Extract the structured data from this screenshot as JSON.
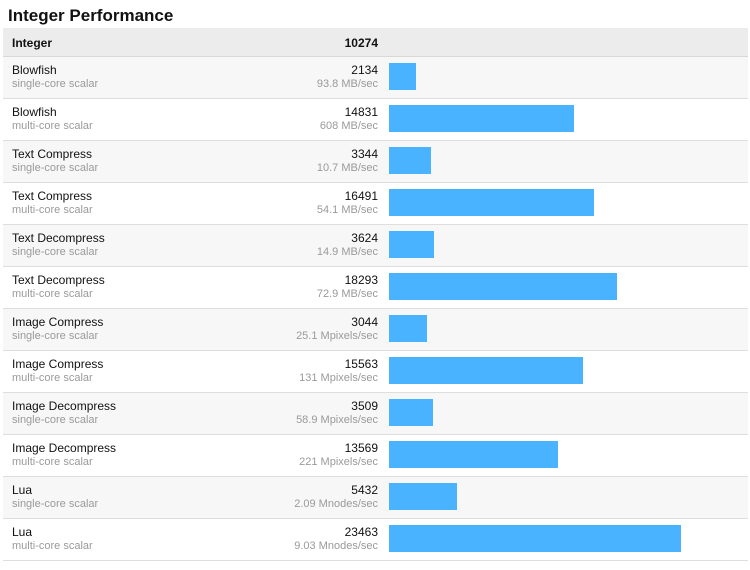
{
  "title": "Integer Performance",
  "header": {
    "name": "Integer",
    "score": "10274"
  },
  "colors": {
    "bar": "#4ab3ff",
    "header_bg": "#ececec",
    "row_alt_bg": "#f7f7f7"
  },
  "chart_data": {
    "type": "bar",
    "orientation": "horizontal",
    "title": "Integer Performance",
    "categories": [
      "Blowfish single-core scalar",
      "Blowfish multi-core scalar",
      "Text Compress single-core scalar",
      "Text Compress multi-core scalar",
      "Text Decompress single-core scalar",
      "Text Decompress multi-core scalar",
      "Image Compress single-core scalar",
      "Image Compress multi-core scalar",
      "Image Decompress single-core scalar",
      "Image Decompress multi-core scalar",
      "Lua single-core scalar",
      "Lua multi-core scalar"
    ],
    "values": [
      2134,
      14831,
      3344,
      16491,
      3624,
      18293,
      3044,
      15563,
      3509,
      13569,
      5432,
      23463
    ],
    "rows": [
      {
        "name": "Blowfish",
        "sub": "single-core scalar",
        "score": 2134,
        "rate": "93.8 MB/sec"
      },
      {
        "name": "Blowfish",
        "sub": "multi-core scalar",
        "score": 14831,
        "rate": "608 MB/sec"
      },
      {
        "name": "Text Compress",
        "sub": "single-core scalar",
        "score": 3344,
        "rate": "10.7 MB/sec"
      },
      {
        "name": "Text Compress",
        "sub": "multi-core scalar",
        "score": 16491,
        "rate": "54.1 MB/sec"
      },
      {
        "name": "Text Decompress",
        "sub": "single-core scalar",
        "score": 3624,
        "rate": "14.9 MB/sec"
      },
      {
        "name": "Text Decompress",
        "sub": "multi-core scalar",
        "score": 18293,
        "rate": "72.9 MB/sec"
      },
      {
        "name": "Image Compress",
        "sub": "single-core scalar",
        "score": 3044,
        "rate": "25.1 Mpixels/sec"
      },
      {
        "name": "Image Compress",
        "sub": "multi-core scalar",
        "score": 15563,
        "rate": "131 Mpixels/sec"
      },
      {
        "name": "Image Decompress",
        "sub": "single-core scalar",
        "score": 3509,
        "rate": "58.9 Mpixels/sec"
      },
      {
        "name": "Image Decompress",
        "sub": "multi-core scalar",
        "score": 13569,
        "rate": "221 Mpixels/sec"
      },
      {
        "name": "Lua",
        "sub": "single-core scalar",
        "score": 5432,
        "rate": "2.09 Mnodes/sec"
      },
      {
        "name": "Lua",
        "sub": "multi-core scalar",
        "score": 23463,
        "rate": "9.03 Mnodes/sec"
      }
    ],
    "xlim": [
      0,
      28500
    ],
    "grid": false,
    "legend": "none"
  }
}
